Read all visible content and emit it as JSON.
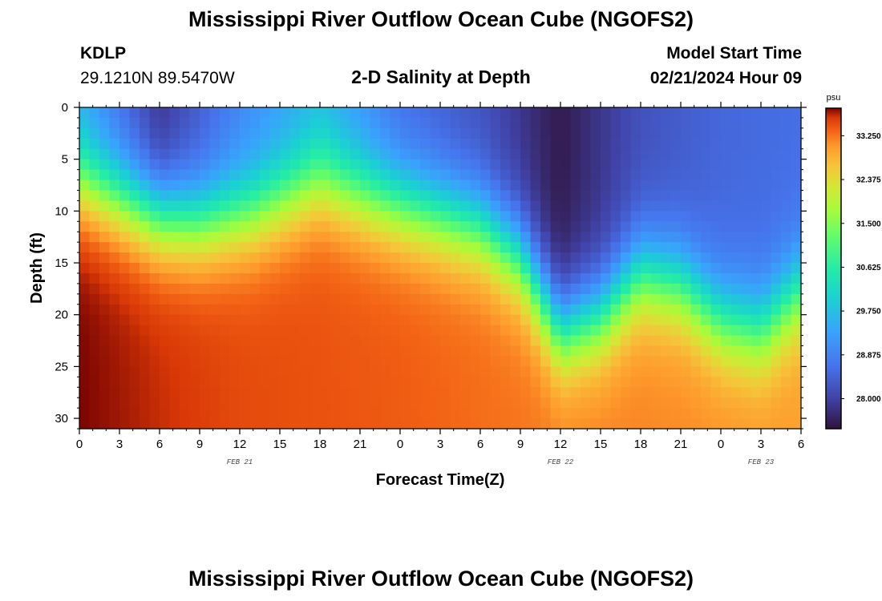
{
  "header": {
    "title": "Mississippi River Outflow Ocean Cube (NGOFS2)",
    "station": "KDLP",
    "coords": "29.1210N  89.5470W",
    "subtitle": "2-D Salinity at Depth",
    "model_label": "Model Start Time",
    "model_time": "02/21/2024 Hour 09"
  },
  "footer": {
    "title": "Mississippi River Outflow Ocean Cube (NGOFS2)"
  },
  "chart_data": {
    "type": "heatmap",
    "xlabel": "Forecast Time(Z)",
    "ylabel": "Depth (ft)",
    "x_range_hours": [
      0,
      54
    ],
    "y_range": [
      0,
      31
    ],
    "x_ticks": [
      "0",
      "3",
      "6",
      "9",
      "12",
      "15",
      "18",
      "21",
      "0",
      "3",
      "6",
      "9",
      "12",
      "15",
      "18",
      "21",
      "0",
      "3",
      "6"
    ],
    "date_labels": [
      {
        "text": "FEB 21",
        "hour": 12
      },
      {
        "text": "FEB 22",
        "hour": 36
      },
      {
        "text": "FEB 23",
        "hour": 51
      }
    ],
    "y_ticks": [
      0,
      5,
      10,
      15,
      20,
      25,
      30
    ],
    "colorbar": {
      "unit": "psu",
      "min": 27.4,
      "max": 33.8,
      "tick_values": [
        28.0,
        28.875,
        29.75,
        30.625,
        31.5,
        32.375,
        33.25
      ],
      "tick_labels": [
        "28.000",
        "28.875",
        "29.750",
        "30.625",
        "31.500",
        "32.375",
        "33.250"
      ]
    },
    "surface_salinity_psu": [
      {
        "hour": 0,
        "value": 29.4
      },
      {
        "hour": 6,
        "value": 27.8
      },
      {
        "hour": 12,
        "value": 28.9
      },
      {
        "hour": 18,
        "value": 29.6
      },
      {
        "hour": 24,
        "value": 28.6
      },
      {
        "hour": 30,
        "value": 28.2
      },
      {
        "hour": 36,
        "value": 27.5
      },
      {
        "hour": 42,
        "value": 28.2
      },
      {
        "hour": 48,
        "value": 28.5
      },
      {
        "hour": 54,
        "value": 28.6
      }
    ],
    "halocline_depth_ft": [
      {
        "hour": 0,
        "value": 7
      },
      {
        "hour": 6,
        "value": 10.5
      },
      {
        "hour": 9,
        "value": 11
      },
      {
        "hour": 13,
        "value": 10
      },
      {
        "hour": 18,
        "value": 7
      },
      {
        "hour": 23,
        "value": 9
      },
      {
        "hour": 30,
        "value": 11.5
      },
      {
        "hour": 33,
        "value": 14.5
      },
      {
        "hour": 36,
        "value": 21.5
      },
      {
        "hour": 39,
        "value": 20
      },
      {
        "hour": 42,
        "value": 16
      },
      {
        "hour": 45,
        "value": 17
      },
      {
        "hour": 48,
        "value": 20.5
      },
      {
        "hour": 51,
        "value": 21.5
      },
      {
        "hour": 54,
        "value": 17.5
      }
    ],
    "bottom_salinity_psu": [
      {
        "hour": 0,
        "value": 33.8
      },
      {
        "hour": 12,
        "value": 33.5
      },
      {
        "hour": 24,
        "value": 33.4
      },
      {
        "hour": 36,
        "value": 33.2
      },
      {
        "hour": 48,
        "value": 33.1
      },
      {
        "hour": 54,
        "value": 33.0
      }
    ]
  }
}
